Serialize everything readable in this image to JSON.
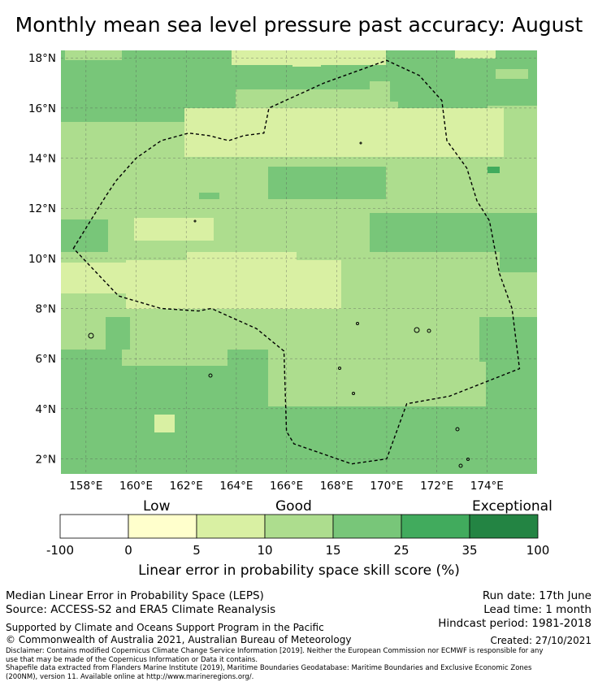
{
  "title": "Monthly mean sea level pressure past accuracy: August",
  "map": {
    "lat_ticks": [
      "18°N",
      "16°N",
      "14°N",
      "12°N",
      "10°N",
      "8°N",
      "6°N",
      "4°N",
      "2°N"
    ],
    "lon_ticks": [
      "158°E",
      "160°E",
      "162°E",
      "164°E",
      "166°E",
      "168°E",
      "170°E",
      "172°E",
      "174°E"
    ],
    "extent": {
      "lon": [
        157.0,
        176.0
      ],
      "lat": [
        1.4,
        18.3
      ]
    },
    "eez_boundary": [
      [
        157.5,
        10.4
      ],
      [
        158.8,
        12.5
      ],
      [
        159.2,
        13.1
      ],
      [
        160.0,
        14.0
      ],
      [
        161.0,
        14.7
      ],
      [
        162.1,
        15.0
      ],
      [
        162.9,
        14.9
      ],
      [
        163.7,
        14.7
      ],
      [
        164.3,
        14.9
      ],
      [
        165.1,
        15.0
      ],
      [
        165.3,
        16.0
      ],
      [
        167.5,
        17.0
      ],
      [
        170.0,
        17.9
      ],
      [
        171.3,
        17.3
      ],
      [
        172.2,
        16.3
      ],
      [
        172.4,
        14.7
      ],
      [
        173.2,
        13.6
      ],
      [
        173.6,
        12.3
      ],
      [
        174.1,
        11.5
      ],
      [
        174.5,
        9.4
      ],
      [
        175.0,
        8.0
      ],
      [
        175.3,
        5.6
      ],
      [
        172.5,
        4.5
      ],
      [
        170.8,
        4.2
      ],
      [
        170.0,
        2.0
      ],
      [
        168.6,
        1.8
      ],
      [
        166.3,
        2.6
      ],
      [
        166.0,
        3.1
      ],
      [
        165.9,
        6.3
      ],
      [
        164.8,
        7.2
      ],
      [
        163.0,
        8.0
      ],
      [
        162.5,
        7.9
      ],
      [
        161.0,
        8.0
      ],
      [
        159.3,
        8.5
      ],
      [
        157.5,
        10.4
      ]
    ],
    "colors": {
      "low": "#ffffcc",
      "light": "#d9f0a3",
      "good": "#addd8e",
      "medium": "#78c679",
      "high": "#41ab5d",
      "exceptional": "#238443"
    }
  },
  "colorbar": {
    "categories": [
      "Low",
      "Good",
      "Exceptional"
    ],
    "ticks": [
      "-100",
      "0",
      "5",
      "10",
      "15",
      "25",
      "35",
      "100"
    ],
    "colors": [
      "#ffffff",
      "#ffffcc",
      "#d9f0a3",
      "#addd8e",
      "#78c679",
      "#41ab5d",
      "#238443"
    ],
    "label": "Linear error in probability space skill score (%)"
  },
  "footer": {
    "left_line1": "Median Linear Error in Probability Space (LEPS)",
    "left_line2": "Source: ACCESS-S2 and ERA5 Climate Reanalysis",
    "run_date": "Run date: 17th June",
    "lead_time": "Lead time: 1 month",
    "hindcast": "Hindcast period: 1981-2018",
    "supported": "Supported by Climate and Oceans Support Program in the Pacific",
    "copyright": "© Commonwealth of Australia 2021, Australian Bureau of Meteorology",
    "created": "Created: 27/10/2021",
    "disclaimer1": "Disclaimer: Contains modified Copernicus Climate Change Service Information [2019]. Neither the European Commission nor ECMWF is responsible for any",
    "disclaimer2": "use that may be made of the Copernicus Information or Data it contains.",
    "shapefile1": "Shapefile data extracted from Flanders Marine Institute (2019), Maritime Boundaries Geodatabase: Maritime Boundaries and Exclusive Economic Zones",
    "shapefile2": "(200NM), version 11. Available online at http://www.marineregions.org/."
  }
}
